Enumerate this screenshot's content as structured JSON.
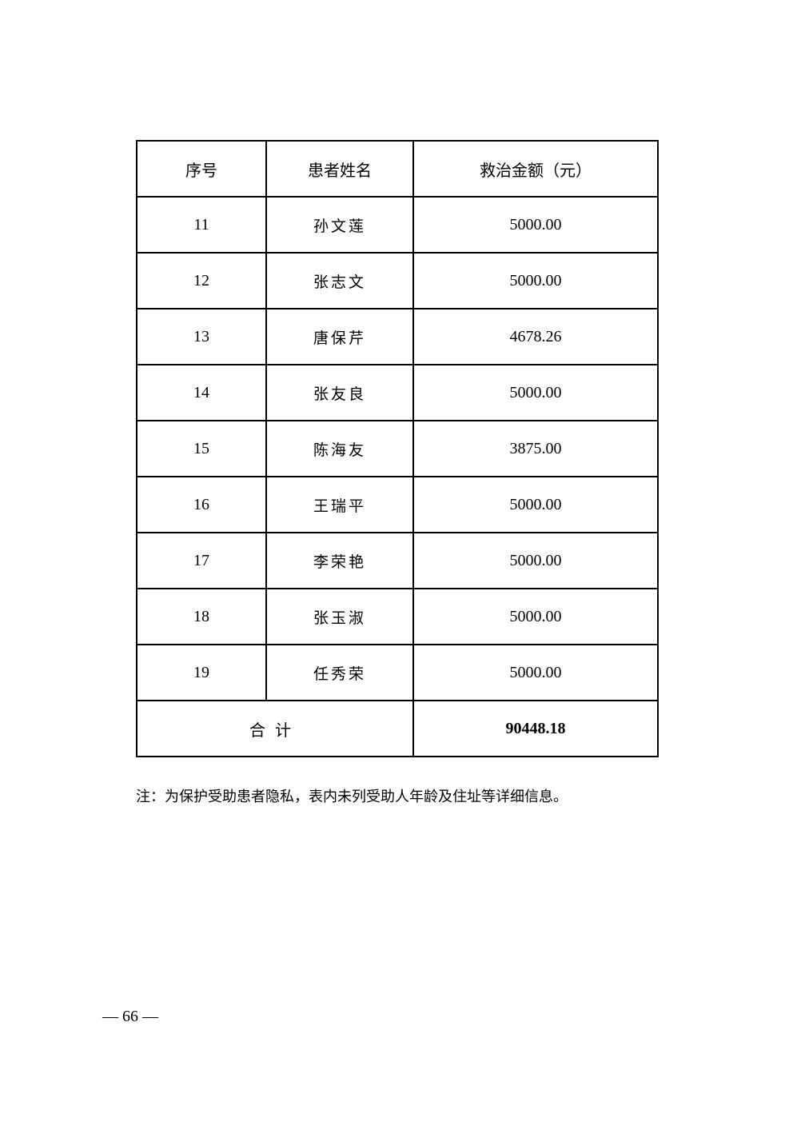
{
  "table": {
    "headers": [
      "序号",
      "患者姓名",
      "救治金额（元）"
    ],
    "rows": [
      {
        "no": "11",
        "name": "孙文莲",
        "amount": "5000.00"
      },
      {
        "no": "12",
        "name": "张志文",
        "amount": "5000.00"
      },
      {
        "no": "13",
        "name": "唐保芹",
        "amount": "4678.26"
      },
      {
        "no": "14",
        "name": "张友良",
        "amount": "5000.00"
      },
      {
        "no": "15",
        "name": "陈海友",
        "amount": "3875.00"
      },
      {
        "no": "16",
        "name": "王瑞平",
        "amount": "5000.00"
      },
      {
        "no": "17",
        "name": "李荣艳",
        "amount": "5000.00"
      },
      {
        "no": "18",
        "name": "张玉淑",
        "amount": "5000.00"
      },
      {
        "no": "19",
        "name": "任秀荣",
        "amount": "5000.00"
      }
    ],
    "total_label": "合计",
    "total_value": "90448.18"
  },
  "note": "注：为保护受助患者隐私，表内未列受助人年龄及住址等详细信息。",
  "page_number": "— 66 —"
}
